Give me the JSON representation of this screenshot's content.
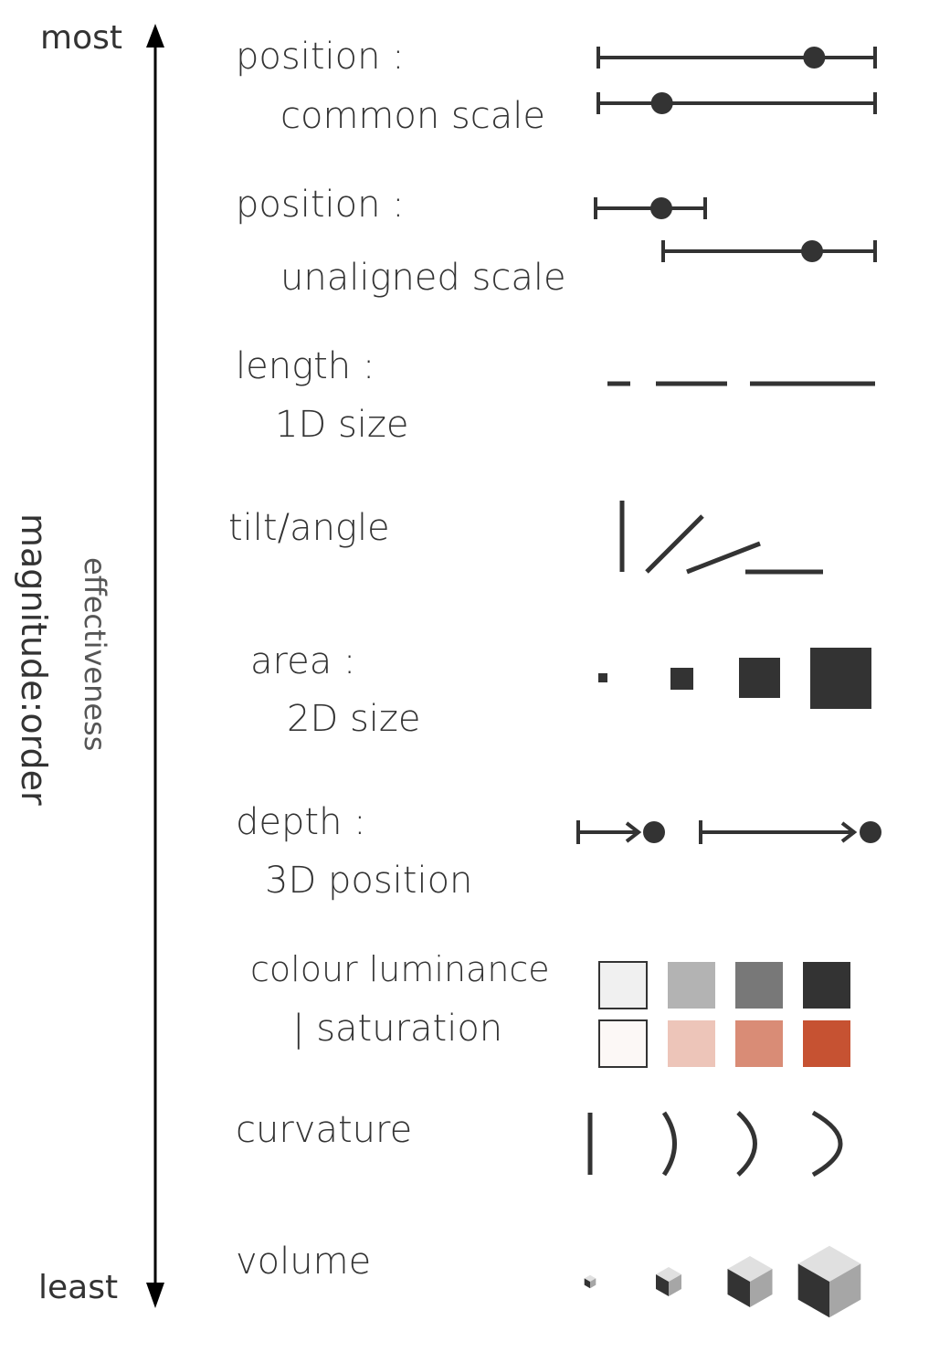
{
  "axis": {
    "top_label": "most",
    "bottom_label": "least",
    "category_label": "magnitude:order",
    "measure_label": "effectiveness"
  },
  "channels": [
    {
      "id": "common-scale",
      "line1": "position :",
      "line2": "common scale",
      "marker_positions": [
        0.78,
        0.23
      ]
    },
    {
      "id": "unaligned-scale",
      "line1": "position :",
      "line2": "unaligned scale"
    },
    {
      "id": "length",
      "line1": "length :",
      "line2": "1D size"
    },
    {
      "id": "tilt",
      "line1": "tilt/angle",
      "line2": ""
    },
    {
      "id": "area",
      "line1": "area :",
      "line2": "2D size"
    },
    {
      "id": "depth",
      "line1": "depth :",
      "line2": "3D position"
    },
    {
      "id": "luminance",
      "line1": "colour luminance",
      "line2": "| saturation"
    },
    {
      "id": "curvature",
      "line1": "curvature",
      "line2": ""
    },
    {
      "id": "volume",
      "line1": "volume",
      "line2": ""
    }
  ],
  "colors": {
    "ink": "#333333",
    "luminance_swatches": [
      "#f0f0f0",
      "#b3b3b3",
      "#787878",
      "#333333"
    ],
    "saturation_swatches": [
      "#fcf8f6",
      "#edc5b9",
      "#d98c76",
      "#c65232"
    ]
  }
}
